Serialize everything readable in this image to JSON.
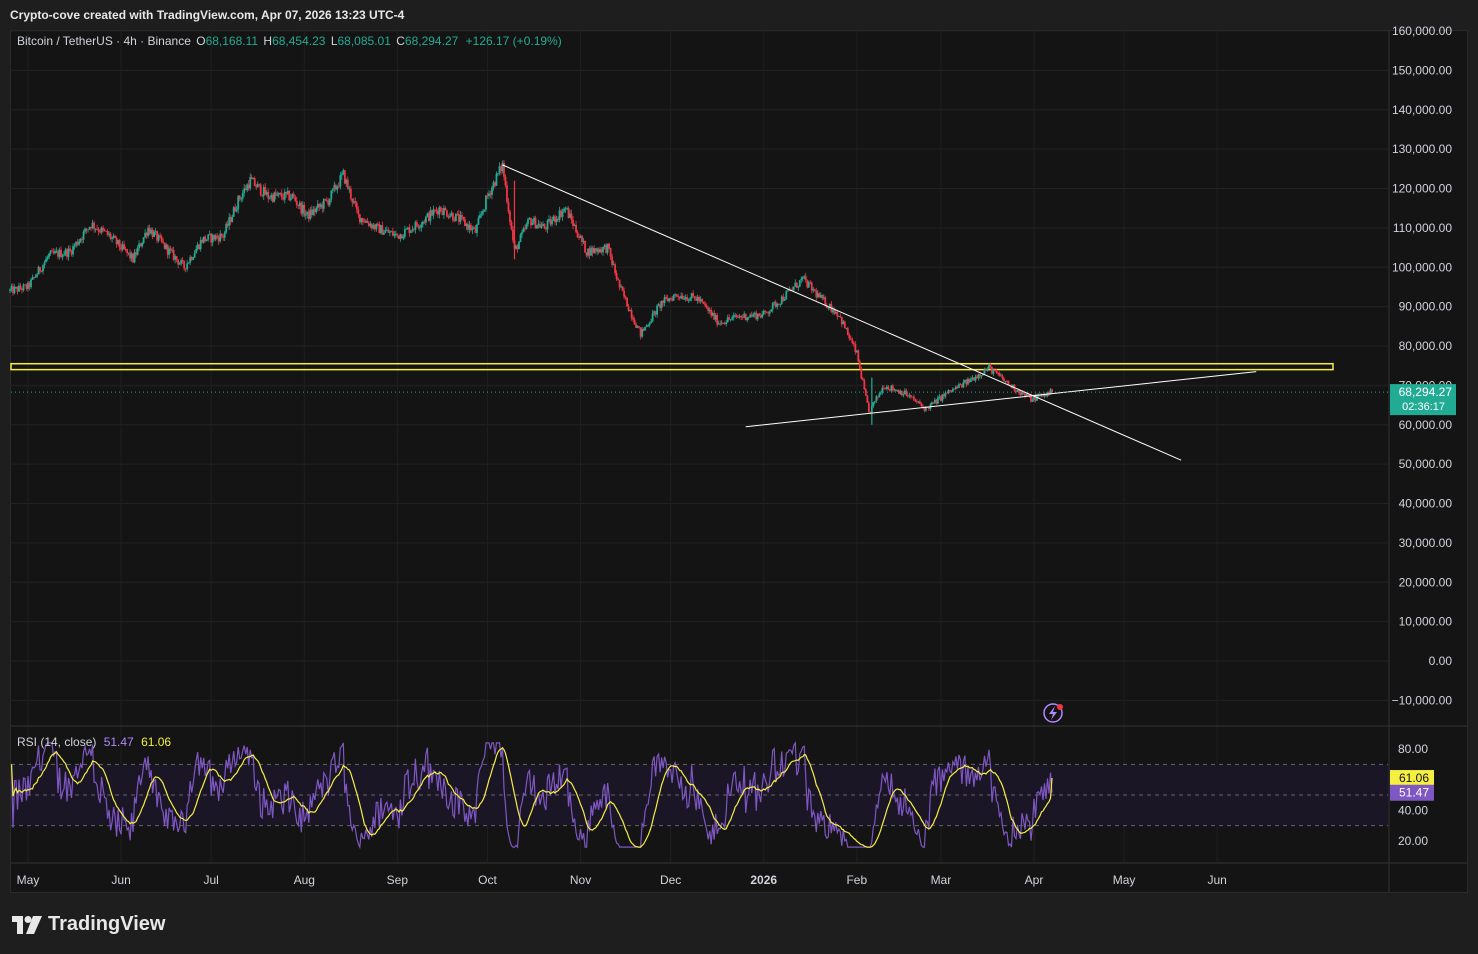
{
  "header": {
    "caption": "Crypto-cove created with TradingView.com, Apr 07, 2026 13:23 UTC-4"
  },
  "legend": {
    "symbol": "Bitcoin / TetherUS · 4h · Binance",
    "o_label": "O",
    "o_value": "68,168.11",
    "h_label": "H",
    "h_value": "68,454.23",
    "l_label": "L",
    "l_value": "68,085.01",
    "c_label": "C",
    "c_value": "68,294.27",
    "change": "+126.17 (+0.19%)"
  },
  "price_badge": {
    "price": "68,294.27",
    "countdown": "02:36:17"
  },
  "rsi": {
    "label": "RSI (14, close)",
    "value": "51.47",
    "ma_value": "61.06",
    "badge_ma": "61.06",
    "badge_rsi": "51.47",
    "ticks": [
      "80.00",
      "40.00",
      "20.00"
    ],
    "upper_band": 70,
    "middle_band": 50,
    "lower_band": 30
  },
  "footer": {
    "brand": "TradingView"
  },
  "colors": {
    "up": "#22ab94",
    "down": "#f23645",
    "rsi_line": "#7e57c2",
    "rsi_ma": "#f5ef42",
    "resistance_zone": "#f5ef42",
    "trendline": "#ffffff"
  },
  "chart_data": {
    "type": "candlestick",
    "symbol": "BTCUSDT",
    "timeframe": "4h",
    "y_ticks": [
      "160,000.00",
      "150,000.00",
      "140,000.00",
      "130,000.00",
      "120,000.00",
      "110,000.00",
      "100,000.00",
      "90,000.00",
      "80,000.00",
      "70,000.00",
      "60,000.00",
      "50,000.00",
      "40,000.00",
      "30,000.00",
      "20,000.00",
      "10,000.00",
      "0.00",
      "−10,000.00"
    ],
    "ylim": [
      -10000,
      160000
    ],
    "x_ticks": [
      "May",
      "Jun",
      "Jul",
      "Aug",
      "Sep",
      "Oct",
      "Nov",
      "Dec",
      "2026",
      "Feb",
      "Mar",
      "Apr",
      "May",
      "Jun"
    ],
    "last_price": 68294.27,
    "price_path": [
      [
        "2025-04-25",
        94000
      ],
      [
        "2025-05-01",
        95000
      ],
      [
        "2025-05-08",
        103000
      ],
      [
        "2025-05-15",
        104000
      ],
      [
        "2025-05-22",
        111000
      ],
      [
        "2025-05-28",
        108000
      ],
      [
        "2025-06-05",
        102000
      ],
      [
        "2025-06-10",
        110000
      ],
      [
        "2025-06-17",
        104000
      ],
      [
        "2025-06-22",
        100000
      ],
      [
        "2025-06-28",
        107000
      ],
      [
        "2025-07-05",
        108000
      ],
      [
        "2025-07-10",
        117000
      ],
      [
        "2025-07-14",
        122000
      ],
      [
        "2025-07-20",
        118000
      ],
      [
        "2025-07-28",
        118000
      ],
      [
        "2025-08-02",
        113000
      ],
      [
        "2025-08-09",
        117000
      ],
      [
        "2025-08-14",
        123500
      ],
      [
        "2025-08-19",
        113000
      ],
      [
        "2025-08-25",
        110000
      ],
      [
        "2025-09-01",
        108000
      ],
      [
        "2025-09-08",
        111000
      ],
      [
        "2025-09-15",
        115000
      ],
      [
        "2025-09-22",
        112000
      ],
      [
        "2025-09-27",
        109000
      ],
      [
        "2025-10-01",
        118000
      ],
      [
        "2025-10-06",
        126000
      ],
      [
        "2025-10-10",
        104000
      ],
      [
        "2025-10-15",
        112000
      ],
      [
        "2025-10-20",
        110000
      ],
      [
        "2025-10-27",
        115000
      ],
      [
        "2025-11-03",
        104000
      ],
      [
        "2025-11-10",
        105000
      ],
      [
        "2025-11-14",
        95000
      ],
      [
        "2025-11-21",
        83000
      ],
      [
        "2025-11-28",
        91000
      ],
      [
        "2025-12-03",
        93000
      ],
      [
        "2025-12-10",
        92000
      ],
      [
        "2025-12-17",
        86000
      ],
      [
        "2025-12-24",
        87500
      ],
      [
        "2026-01-01",
        88000
      ],
      [
        "2026-01-07",
        92000
      ],
      [
        "2026-01-14",
        97000
      ],
      [
        "2026-01-20",
        92000
      ],
      [
        "2026-01-26",
        88000
      ],
      [
        "2026-02-01",
        78000
      ],
      [
        "2026-02-05",
        63000
      ],
      [
        "2026-02-10",
        70000
      ],
      [
        "2026-02-17",
        68000
      ],
      [
        "2026-02-24",
        64000
      ],
      [
        "2026-03-03",
        68000
      ],
      [
        "2026-03-10",
        71000
      ],
      [
        "2026-03-17",
        74500
      ],
      [
        "2026-03-24",
        70000
      ],
      [
        "2026-03-31",
        66500
      ],
      [
        "2026-04-07",
        68294
      ]
    ],
    "annotations": {
      "resistance_zone": [
        74000,
        75500
      ],
      "descending_trendline": [
        [
          "2025-10-06",
          126000
        ],
        [
          "2026-05-20",
          51000
        ]
      ],
      "ascending_trendline": [
        [
          "2025-12-26",
          59500
        ],
        [
          "2026-06-14",
          73500
        ]
      ]
    },
    "rsi_series": {
      "name": "RSI (14, close)",
      "ylim": [
        10,
        90
      ],
      "last": 51.47,
      "ma_last": 61.06
    }
  }
}
